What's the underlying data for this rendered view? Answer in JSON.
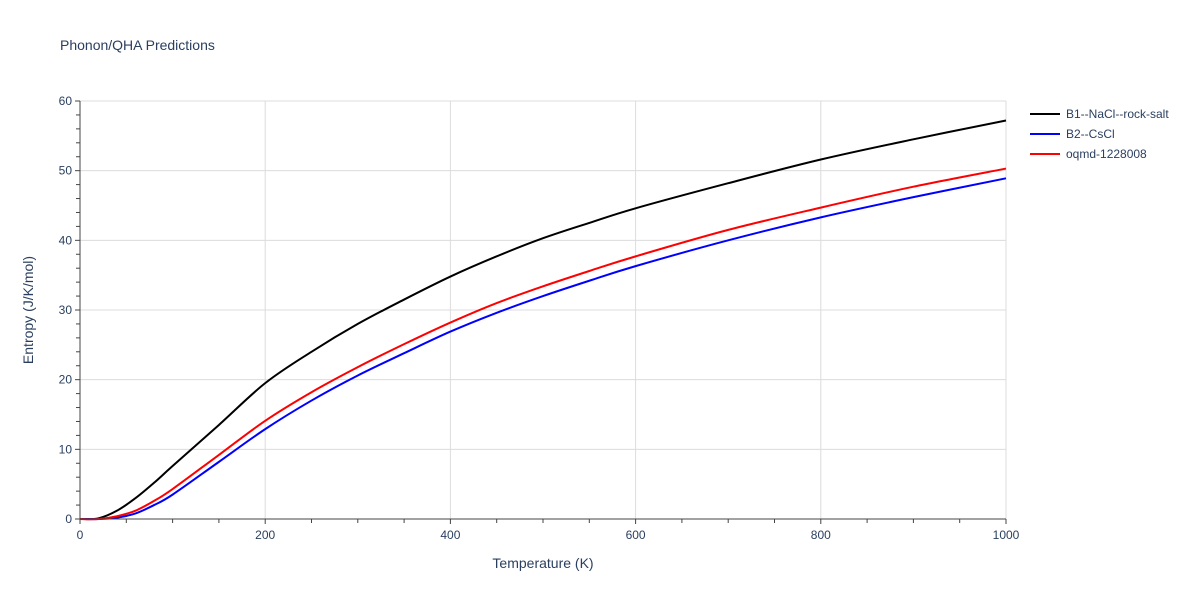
{
  "chart_data": {
    "type": "line",
    "title": "Phonon/QHA Predictions",
    "xlabel": "Temperature (K)",
    "ylabel": "Entropy (J/K/mol)",
    "xlim": [
      0,
      1000
    ],
    "ylim": [
      0,
      60
    ],
    "xticks": [
      0,
      200,
      400,
      600,
      800,
      1000
    ],
    "yticks": [
      0,
      10,
      20,
      30,
      40,
      50,
      60
    ],
    "grid": true,
    "legend_position": "top-right",
    "x": [
      0,
      20,
      40,
      60,
      80,
      100,
      150,
      200,
      250,
      300,
      350,
      400,
      450,
      500,
      550,
      600,
      700,
      800,
      900,
      1000
    ],
    "series": [
      {
        "name": "B1--NaCl--rock-salt",
        "color": "#000000",
        "values": [
          0,
          0.1,
          1.2,
          3.0,
          5.2,
          7.6,
          13.5,
          19.5,
          24.0,
          28.0,
          31.5,
          34.8,
          37.7,
          40.3,
          42.5,
          44.6,
          48.2,
          51.6,
          54.5,
          57.2
        ]
      },
      {
        "name": "B2--CsCl",
        "color": "#0000ff",
        "values": [
          0,
          0,
          0.2,
          0.8,
          2.0,
          3.5,
          8.2,
          12.9,
          17.0,
          20.6,
          23.8,
          26.9,
          29.6,
          32.0,
          34.2,
          36.3,
          40.0,
          43.3,
          46.2,
          48.9
        ]
      },
      {
        "name": "oqmd-1228008",
        "color": "#ff0000",
        "values": [
          0,
          0,
          0.4,
          1.2,
          2.6,
          4.3,
          9.2,
          14.1,
          18.2,
          21.8,
          25.1,
          28.2,
          31.0,
          33.4,
          35.6,
          37.7,
          41.5,
          44.7,
          47.7,
          50.3
        ]
      }
    ]
  }
}
